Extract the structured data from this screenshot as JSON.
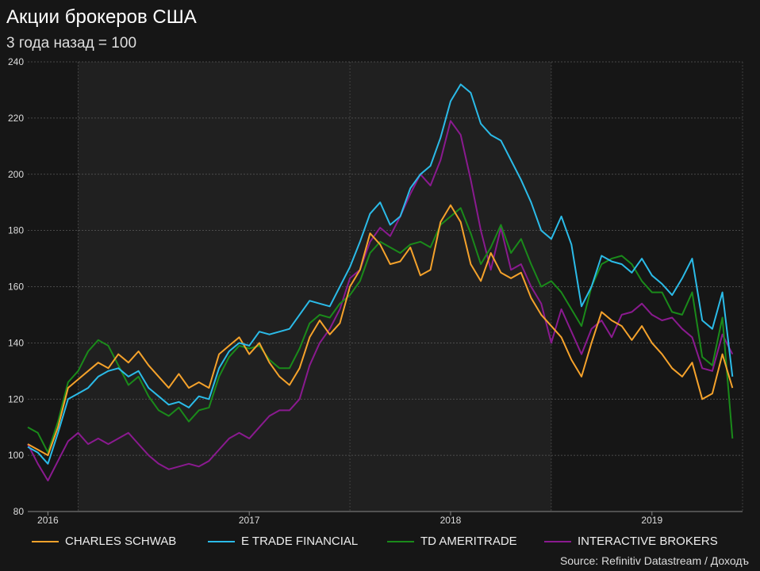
{
  "title": "Акции брокеров США",
  "subtitle": "3 года назад = 100",
  "source": "Source: Refinitiv Datastream / Доходъ",
  "colors": {
    "background": "#161616",
    "plot_light": "#202020",
    "plot_dark": "#161616",
    "charles_schwab": "#f5a22b",
    "e_trade": "#2bbbe8",
    "td_ameritrade": "#1a8a1a",
    "interactive_brokers": "#8a1a8f"
  },
  "chart_data": {
    "type": "line",
    "title": "Акции брокеров США",
    "subtitle": "3 года назад = 100",
    "xlabel": "",
    "ylabel": "",
    "x_range": [
      2015.9,
      2019.45
    ],
    "ylim": [
      80,
      240
    ],
    "yticks": [
      80,
      100,
      120,
      140,
      160,
      180,
      200,
      220,
      240
    ],
    "xticks": [
      {
        "label": "2016",
        "x": 2016.0
      },
      {
        "label": "2017",
        "x": 2017.0
      },
      {
        "label": "2018",
        "x": 2018.0
      },
      {
        "label": "2019",
        "x": 2019.0
      }
    ],
    "grid": true,
    "legend_position": "bottom",
    "shaded_periods": [
      [
        2016.15,
        2017.5
      ],
      [
        2017.5,
        2018.5
      ]
    ],
    "series": [
      {
        "name": "CHARLES SCHWAB",
        "color": "#f5a22b",
        "points": [
          [
            2015.9,
            104
          ],
          [
            2015.95,
            102
          ],
          [
            2016.0,
            100
          ],
          [
            2016.05,
            110
          ],
          [
            2016.1,
            124
          ],
          [
            2016.15,
            127
          ],
          [
            2016.2,
            130
          ],
          [
            2016.25,
            133
          ],
          [
            2016.3,
            131
          ],
          [
            2016.35,
            136
          ],
          [
            2016.4,
            133
          ],
          [
            2016.45,
            137
          ],
          [
            2016.5,
            132
          ],
          [
            2016.55,
            128
          ],
          [
            2016.6,
            124
          ],
          [
            2016.65,
            129
          ],
          [
            2016.7,
            124
          ],
          [
            2016.75,
            126
          ],
          [
            2016.8,
            124
          ],
          [
            2016.85,
            136
          ],
          [
            2016.9,
            139
          ],
          [
            2016.95,
            142
          ],
          [
            2017.0,
            136
          ],
          [
            2017.05,
            140
          ],
          [
            2017.1,
            133
          ],
          [
            2017.15,
            128
          ],
          [
            2017.2,
            125
          ],
          [
            2017.25,
            131
          ],
          [
            2017.3,
            142
          ],
          [
            2017.35,
            148
          ],
          [
            2017.4,
            143
          ],
          [
            2017.45,
            147
          ],
          [
            2017.5,
            160
          ],
          [
            2017.55,
            166
          ],
          [
            2017.6,
            179
          ],
          [
            2017.65,
            175
          ],
          [
            2017.7,
            168
          ],
          [
            2017.75,
            169
          ],
          [
            2017.8,
            174
          ],
          [
            2017.85,
            164
          ],
          [
            2017.9,
            166
          ],
          [
            2017.95,
            183
          ],
          [
            2018.0,
            189
          ],
          [
            2018.05,
            183
          ],
          [
            2018.1,
            168
          ],
          [
            2018.15,
            162
          ],
          [
            2018.2,
            172
          ],
          [
            2018.25,
            165
          ],
          [
            2018.3,
            163
          ],
          [
            2018.35,
            165
          ],
          [
            2018.4,
            156
          ],
          [
            2018.45,
            150
          ],
          [
            2018.5,
            146
          ],
          [
            2018.55,
            142
          ],
          [
            2018.6,
            134
          ],
          [
            2018.65,
            128
          ],
          [
            2018.7,
            140
          ],
          [
            2018.75,
            151
          ],
          [
            2018.8,
            148
          ],
          [
            2018.85,
            146
          ],
          [
            2018.9,
            141
          ],
          [
            2018.95,
            146
          ],
          [
            2019.0,
            140
          ],
          [
            2019.05,
            136
          ],
          [
            2019.1,
            131
          ],
          [
            2019.15,
            128
          ],
          [
            2019.2,
            133
          ],
          [
            2019.25,
            120
          ],
          [
            2019.3,
            122
          ],
          [
            2019.35,
            136
          ],
          [
            2019.4,
            124
          ]
        ]
      },
      {
        "name": "E TRADE FINANCIAL",
        "color": "#2bbbe8",
        "points": [
          [
            2015.9,
            103
          ],
          [
            2015.95,
            101
          ],
          [
            2016.0,
            97
          ],
          [
            2016.05,
            108
          ],
          [
            2016.1,
            120
          ],
          [
            2016.15,
            122
          ],
          [
            2016.2,
            124
          ],
          [
            2016.25,
            128
          ],
          [
            2016.3,
            130
          ],
          [
            2016.35,
            131
          ],
          [
            2016.4,
            128
          ],
          [
            2016.45,
            130
          ],
          [
            2016.5,
            124
          ],
          [
            2016.55,
            121
          ],
          [
            2016.6,
            118
          ],
          [
            2016.65,
            119
          ],
          [
            2016.7,
            117
          ],
          [
            2016.75,
            121
          ],
          [
            2016.8,
            120
          ],
          [
            2016.85,
            131
          ],
          [
            2016.9,
            137
          ],
          [
            2016.95,
            140
          ],
          [
            2017.0,
            139
          ],
          [
            2017.05,
            144
          ],
          [
            2017.1,
            143
          ],
          [
            2017.15,
            144
          ],
          [
            2017.2,
            145
          ],
          [
            2017.25,
            150
          ],
          [
            2017.3,
            155
          ],
          [
            2017.35,
            154
          ],
          [
            2017.4,
            153
          ],
          [
            2017.45,
            160
          ],
          [
            2017.5,
            167
          ],
          [
            2017.55,
            176
          ],
          [
            2017.6,
            186
          ],
          [
            2017.65,
            190
          ],
          [
            2017.7,
            182
          ],
          [
            2017.75,
            185
          ],
          [
            2017.8,
            195
          ],
          [
            2017.85,
            200
          ],
          [
            2017.9,
            203
          ],
          [
            2017.95,
            213
          ],
          [
            2018.0,
            226
          ],
          [
            2018.05,
            232
          ],
          [
            2018.1,
            229
          ],
          [
            2018.15,
            218
          ],
          [
            2018.2,
            214
          ],
          [
            2018.25,
            212
          ],
          [
            2018.3,
            205
          ],
          [
            2018.35,
            198
          ],
          [
            2018.4,
            190
          ],
          [
            2018.45,
            180
          ],
          [
            2018.5,
            177
          ],
          [
            2018.55,
            185
          ],
          [
            2018.6,
            175
          ],
          [
            2018.65,
            153
          ],
          [
            2018.7,
            160
          ],
          [
            2018.75,
            171
          ],
          [
            2018.8,
            169
          ],
          [
            2018.85,
            168
          ],
          [
            2018.9,
            165
          ],
          [
            2018.95,
            170
          ],
          [
            2019.0,
            164
          ],
          [
            2019.05,
            161
          ],
          [
            2019.1,
            157
          ],
          [
            2019.15,
            163
          ],
          [
            2019.2,
            170
          ],
          [
            2019.25,
            148
          ],
          [
            2019.3,
            145
          ],
          [
            2019.35,
            158
          ],
          [
            2019.4,
            128
          ]
        ]
      },
      {
        "name": "TD AMERITRADE",
        "color": "#1a8a1a",
        "points": [
          [
            2015.9,
            110
          ],
          [
            2015.95,
            108
          ],
          [
            2016.0,
            101
          ],
          [
            2016.05,
            112
          ],
          [
            2016.1,
            126
          ],
          [
            2016.15,
            130
          ],
          [
            2016.2,
            137
          ],
          [
            2016.25,
            141
          ],
          [
            2016.3,
            139
          ],
          [
            2016.35,
            132
          ],
          [
            2016.4,
            125
          ],
          [
            2016.45,
            128
          ],
          [
            2016.5,
            121
          ],
          [
            2016.55,
            116
          ],
          [
            2016.6,
            114
          ],
          [
            2016.65,
            117
          ],
          [
            2016.7,
            112
          ],
          [
            2016.75,
            116
          ],
          [
            2016.8,
            117
          ],
          [
            2016.85,
            128
          ],
          [
            2016.9,
            135
          ],
          [
            2016.95,
            139
          ],
          [
            2017.0,
            138
          ],
          [
            2017.05,
            139
          ],
          [
            2017.1,
            134
          ],
          [
            2017.15,
            131
          ],
          [
            2017.2,
            131
          ],
          [
            2017.25,
            138
          ],
          [
            2017.3,
            147
          ],
          [
            2017.35,
            150
          ],
          [
            2017.4,
            149
          ],
          [
            2017.45,
            154
          ],
          [
            2017.5,
            157
          ],
          [
            2017.55,
            162
          ],
          [
            2017.6,
            172
          ],
          [
            2017.65,
            176
          ],
          [
            2017.7,
            174
          ],
          [
            2017.75,
            172
          ],
          [
            2017.8,
            175
          ],
          [
            2017.85,
            176
          ],
          [
            2017.9,
            174
          ],
          [
            2017.95,
            182
          ],
          [
            2018.0,
            185
          ],
          [
            2018.05,
            188
          ],
          [
            2018.1,
            179
          ],
          [
            2018.15,
            168
          ],
          [
            2018.2,
            174
          ],
          [
            2018.25,
            182
          ],
          [
            2018.3,
            172
          ],
          [
            2018.35,
            177
          ],
          [
            2018.4,
            168
          ],
          [
            2018.45,
            160
          ],
          [
            2018.5,
            162
          ],
          [
            2018.55,
            158
          ],
          [
            2018.6,
            152
          ],
          [
            2018.65,
            146
          ],
          [
            2018.7,
            160
          ],
          [
            2018.75,
            168
          ],
          [
            2018.8,
            170
          ],
          [
            2018.85,
            171
          ],
          [
            2018.9,
            168
          ],
          [
            2018.95,
            162
          ],
          [
            2019.0,
            158
          ],
          [
            2019.05,
            158
          ],
          [
            2019.1,
            151
          ],
          [
            2019.15,
            150
          ],
          [
            2019.2,
            158
          ],
          [
            2019.25,
            135
          ],
          [
            2019.3,
            132
          ],
          [
            2019.35,
            149
          ],
          [
            2019.4,
            106
          ]
        ]
      },
      {
        "name": "INTERACTIVE BROKERS",
        "color": "#8a1a8f",
        "points": [
          [
            2015.9,
            104
          ],
          [
            2015.95,
            97
          ],
          [
            2016.0,
            91
          ],
          [
            2016.05,
            98
          ],
          [
            2016.1,
            105
          ],
          [
            2016.15,
            108
          ],
          [
            2016.2,
            104
          ],
          [
            2016.25,
            106
          ],
          [
            2016.3,
            104
          ],
          [
            2016.35,
            106
          ],
          [
            2016.4,
            108
          ],
          [
            2016.45,
            104
          ],
          [
            2016.5,
            100
          ],
          [
            2016.55,
            97
          ],
          [
            2016.6,
            95
          ],
          [
            2016.65,
            96
          ],
          [
            2016.7,
            97
          ],
          [
            2016.75,
            96
          ],
          [
            2016.8,
            98
          ],
          [
            2016.85,
            102
          ],
          [
            2016.9,
            106
          ],
          [
            2016.95,
            108
          ],
          [
            2017.0,
            106
          ],
          [
            2017.05,
            110
          ],
          [
            2017.1,
            114
          ],
          [
            2017.15,
            116
          ],
          [
            2017.2,
            116
          ],
          [
            2017.25,
            120
          ],
          [
            2017.3,
            132
          ],
          [
            2017.35,
            140
          ],
          [
            2017.4,
            145
          ],
          [
            2017.45,
            152
          ],
          [
            2017.5,
            163
          ],
          [
            2017.55,
            166
          ],
          [
            2017.6,
            176
          ],
          [
            2017.65,
            181
          ],
          [
            2017.7,
            178
          ],
          [
            2017.75,
            185
          ],
          [
            2017.8,
            193
          ],
          [
            2017.85,
            200
          ],
          [
            2017.9,
            196
          ],
          [
            2017.95,
            205
          ],
          [
            2018.0,
            219
          ],
          [
            2018.05,
            214
          ],
          [
            2018.1,
            198
          ],
          [
            2018.15,
            180
          ],
          [
            2018.2,
            166
          ],
          [
            2018.25,
            181
          ],
          [
            2018.3,
            166
          ],
          [
            2018.35,
            168
          ],
          [
            2018.4,
            160
          ],
          [
            2018.45,
            154
          ],
          [
            2018.5,
            140
          ],
          [
            2018.55,
            152
          ],
          [
            2018.6,
            144
          ],
          [
            2018.65,
            136
          ],
          [
            2018.7,
            145
          ],
          [
            2018.75,
            148
          ],
          [
            2018.8,
            142
          ],
          [
            2018.85,
            150
          ],
          [
            2018.9,
            151
          ],
          [
            2018.95,
            154
          ],
          [
            2019.0,
            150
          ],
          [
            2019.05,
            148
          ],
          [
            2019.1,
            149
          ],
          [
            2019.15,
            145
          ],
          [
            2019.2,
            142
          ],
          [
            2019.25,
            131
          ],
          [
            2019.3,
            130
          ],
          [
            2019.35,
            143
          ],
          [
            2019.4,
            136
          ]
        ]
      }
    ]
  }
}
